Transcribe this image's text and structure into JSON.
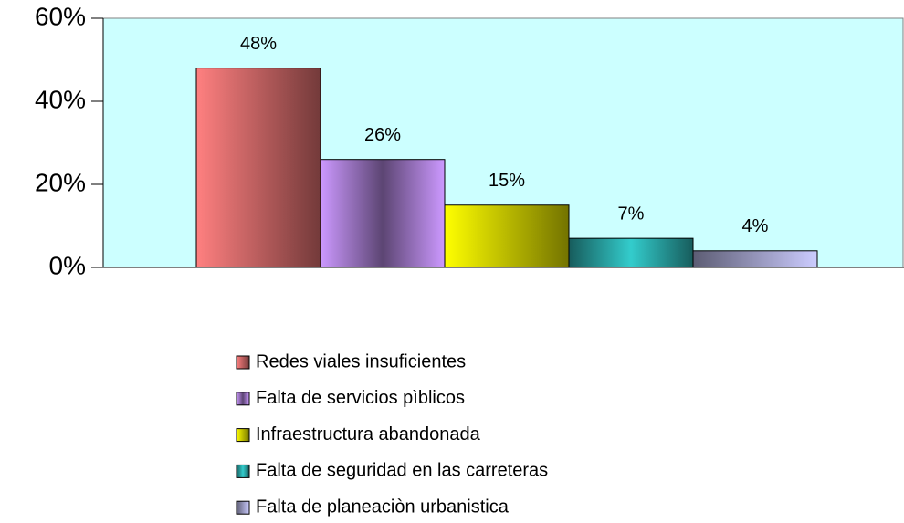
{
  "chart_data": {
    "type": "bar",
    "categories": [
      null
    ],
    "series": [
      {
        "name": "Redes viales insuficientes",
        "color": "#ff8080",
        "values": [
          48
        ],
        "value_labels": [
          "48%"
        ]
      },
      {
        "name": "Falta de servicios pìblicos",
        "color": "#cc99ff",
        "values": [
          26
        ],
        "value_labels": [
          "26%"
        ]
      },
      {
        "name": "Infraestructura abandonada",
        "color": "#ffff00",
        "values": [
          15
        ],
        "value_labels": [
          "15%"
        ]
      },
      {
        "name": "Falta de seguridad en las carreteras",
        "color": "#33cccc",
        "values": [
          7
        ],
        "value_labels": [
          "7%"
        ]
      },
      {
        "name": "Falta de planeaciòn urbanistica",
        "color": "#ccccff",
        "values": [
          4
        ],
        "value_labels": [
          "4%"
        ]
      }
    ],
    "ylim": [
      0,
      60
    ],
    "yticks": [
      {
        "value": 0,
        "label": "0%"
      },
      {
        "value": 20,
        "label": "20%"
      },
      {
        "value": 40,
        "label": "40%"
      },
      {
        "value": 60,
        "label": "60%"
      }
    ],
    "plot_background": "#ccffff",
    "legend": "bottom"
  }
}
